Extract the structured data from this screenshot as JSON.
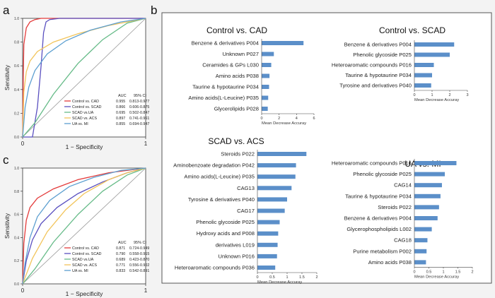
{
  "panels": {
    "a": "a",
    "b": "b",
    "c": "c"
  },
  "colors": {
    "red": "#e33b3b",
    "purple": "#5a50c0",
    "green": "#66bb88",
    "yellow": "#f2c45a",
    "blue": "#5c9fd0",
    "bar": "#5b8fc9"
  },
  "chart_data": [
    {
      "id": "roc_a",
      "type": "line",
      "panel": "a",
      "xlabel": "1 − Specificity",
      "ylabel": "Sensitivity",
      "xticks": [
        "0",
        "1"
      ],
      "yticks": [
        "0.0",
        "0.2",
        "0.4",
        "0.6",
        "0.8",
        "1.0"
      ],
      "xlim": [
        0,
        1
      ],
      "ylim": [
        0,
        1
      ],
      "legend_header": [
        "AUC",
        "95% CI"
      ],
      "series": [
        {
          "name": "Control vs. CAD",
          "auc": "0.955",
          "ci": "0.813-0.977",
          "color": "red",
          "x": [
            0,
            0.005,
            0.01,
            0.03,
            0.06,
            0.1,
            0.15,
            0.25,
            1
          ],
          "y": [
            0,
            0.5,
            0.78,
            0.92,
            0.97,
            0.99,
            1,
            1,
            1
          ]
        },
        {
          "name": "Control vs. SCAD",
          "auc": "0.866",
          "ci": "0.606-0.875",
          "color": "purple",
          "x": [
            0,
            0.08,
            0.12,
            0.15,
            0.17,
            0.19,
            0.22,
            0.3,
            1
          ],
          "y": [
            0,
            0,
            0.25,
            0.6,
            0.88,
            0.97,
            0.99,
            1,
            1
          ]
        },
        {
          "name": "SCAD vs.UA",
          "auc": "0.695",
          "ci": "0.502-0.847",
          "color": "green",
          "x": [
            0,
            0.1,
            0.25,
            0.45,
            0.65,
            0.85,
            1
          ],
          "y": [
            0,
            0.12,
            0.36,
            0.62,
            0.82,
            0.96,
            1
          ]
        },
        {
          "name": "SCAD vs. ACS",
          "auc": "0.897",
          "ci": "0.741-0.961",
          "color": "yellow",
          "x": [
            0,
            0.01,
            0.03,
            0.06,
            0.12,
            0.25,
            0.45,
            0.7,
            1
          ],
          "y": [
            0,
            0.38,
            0.55,
            0.64,
            0.72,
            0.8,
            0.87,
            0.94,
            1
          ]
        },
        {
          "name": "UA vs. MI",
          "auc": "0.855",
          "ci": "0.694-0.947",
          "color": "blue",
          "x": [
            0,
            0.02,
            0.05,
            0.1,
            0.2,
            0.35,
            0.55,
            0.8,
            1
          ],
          "y": [
            0,
            0.25,
            0.42,
            0.56,
            0.7,
            0.81,
            0.9,
            0.97,
            1
          ]
        }
      ]
    },
    {
      "id": "roc_c",
      "type": "line",
      "panel": "c",
      "xlabel": "1 − Specificity",
      "ylabel": "Sensitivity",
      "xticks": [
        "0",
        "1"
      ],
      "yticks": [
        "0.0",
        "0.2",
        "0.4",
        "0.6",
        "0.8",
        "1.0"
      ],
      "xlim": [
        0,
        1
      ],
      "ylim": [
        0,
        1
      ],
      "legend_header": [
        "AUC",
        "95% CI"
      ],
      "series": [
        {
          "name": "Control vs. CAD",
          "auc": "0.871",
          "ci": "0.724-0.949",
          "color": "red",
          "x": [
            0,
            0.01,
            0.03,
            0.06,
            0.12,
            0.25,
            0.45,
            0.7,
            1
          ],
          "y": [
            0,
            0.35,
            0.55,
            0.66,
            0.74,
            0.82,
            0.9,
            0.96,
            1
          ]
        },
        {
          "name": "Control vs. SCAD",
          "auc": "0.790",
          "ci": "0.558-0.915",
          "color": "purple",
          "x": [
            0,
            0.03,
            0.08,
            0.15,
            0.28,
            0.45,
            0.65,
            0.85,
            1
          ],
          "y": [
            0,
            0.2,
            0.38,
            0.52,
            0.66,
            0.78,
            0.88,
            0.96,
            1
          ]
        },
        {
          "name": "SCAD vs.UA",
          "auc": "0.689",
          "ci": "0.423-0.870",
          "color": "green",
          "x": [
            0,
            0.1,
            0.25,
            0.45,
            0.65,
            0.85,
            1
          ],
          "y": [
            0,
            0.13,
            0.36,
            0.6,
            0.8,
            0.94,
            1
          ]
        },
        {
          "name": "SCAD vs. ACS",
          "auc": "0.771",
          "ci": "0.556-0.902",
          "color": "yellow",
          "x": [
            0,
            0.08,
            0.2,
            0.35,
            0.5,
            0.7,
            0.85,
            1
          ],
          "y": [
            0,
            0.22,
            0.45,
            0.64,
            0.78,
            0.9,
            0.96,
            1
          ]
        },
        {
          "name": "UA vs. MI",
          "auc": "0.833",
          "ci": "0.542-0.891",
          "color": "blue",
          "x": [
            0,
            0.02,
            0.06,
            0.12,
            0.22,
            0.38,
            0.58,
            0.8,
            1
          ],
          "y": [
            0,
            0.18,
            0.4,
            0.58,
            0.72,
            0.84,
            0.92,
            0.98,
            1
          ]
        }
      ]
    },
    {
      "id": "bar_ctrl_cad",
      "type": "bar",
      "orientation": "horizontal",
      "title": "Control vs. CAD",
      "xlabel": "Mean Decrease Accuray",
      "xticks": [
        0,
        2,
        4,
        6
      ],
      "xlim": [
        0,
        6
      ],
      "categories": [
        "Benzene & derivatives  P004",
        "Unknown  P027",
        "Ceramides & GPs  L030",
        "Amino acids  P038",
        "Taurine & hypotaurine  P034",
        "Amino acids(L-Leucine)  P035",
        "Glycerolipids  P028"
      ],
      "values": [
        4.8,
        1.4,
        1.1,
        0.9,
        0.85,
        0.75,
        0.7
      ]
    },
    {
      "id": "bar_ctrl_scad",
      "type": "bar",
      "orientation": "horizontal",
      "title": "Control vs. SCAD",
      "xlabel": "Mean Decrease Accuray",
      "xticks": [
        0,
        1,
        2,
        3
      ],
      "xlim": [
        0,
        3
      ],
      "categories": [
        "Benzene & derivatives  P004",
        "Phenolic glycoside  P025",
        "Heteroaromatic compounds  P016",
        "Taurine & hypotaurine  P034",
        "Tyrosine and derivatives  P040"
      ],
      "values": [
        2.25,
        2.0,
        1.1,
        1.0,
        0.95
      ]
    },
    {
      "id": "bar_scad_acs",
      "type": "bar",
      "orientation": "horizontal",
      "title": "SCAD vs. ACS",
      "xlabel": "Mean Decrease Accuray",
      "xticks": [
        0,
        0.5,
        1,
        1.5,
        2
      ],
      "xlim": [
        0,
        2
      ],
      "categories": [
        "Steroids  P022",
        "Aminobenzoate degradation  P042",
        "Amino acids(L-Leucine)  P035",
        "CAG13",
        "Tyrosine & derivatives  P040",
        "CAG17",
        "Phenolic glycoside  P025",
        "Hydroxy acids and  P008",
        "derivatives  L019",
        "Unknown  P016",
        "Heteroaromatic compounds  P036"
      ],
      "values": [
        1.65,
        1.3,
        1.28,
        1.15,
        1.0,
        0.92,
        0.75,
        0.7,
        0.68,
        0.66,
        0.6
      ]
    },
    {
      "id": "bar_ua_mi",
      "type": "bar",
      "orientation": "horizontal",
      "title": "UA vs. MI",
      "xlabel": "Mean Decrease Accuray",
      "xticks": [
        0,
        0.5,
        1,
        1.5,
        2
      ],
      "xlim": [
        0,
        2
      ],
      "categories": [
        "Heteroaromatic compounds  P016",
        "Phenolic glycoside  P025",
        "CAG14",
        "Taurine & hypotaurine  P034",
        "Steroids  P022",
        "Benzene & derivatives  P004",
        "Glycerophospholipids  L002",
        "CAG18",
        "Purine metabolism  P002",
        "Amino acids  P038"
      ],
      "values": [
        1.45,
        1.05,
        0.95,
        0.9,
        0.85,
        0.8,
        0.6,
        0.45,
        0.42,
        0.4
      ]
    }
  ]
}
